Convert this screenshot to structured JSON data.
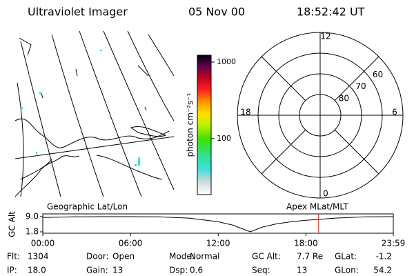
{
  "header": {
    "title": "Ultraviolet Imager",
    "date": "05 Nov 00",
    "time": "18:52:42 UT"
  },
  "colorbar": {
    "label": "photon cm⁻²s⁻¹",
    "scale": "log",
    "lim": [
      18.6,
      1230
    ],
    "ticks": [
      100,
      1000
    ]
  },
  "polar": {
    "rlim": [
      90,
      50
    ],
    "rings": [
      60,
      70,
      80
    ],
    "mlt_ticks": [
      0,
      6,
      12,
      18
    ]
  },
  "orbit": {
    "left_label": "Geographic Lat/Lon",
    "right_label": "Apex MLat/MLT",
    "ylabel": "GC Alt",
    "xlim": [
      0,
      23.98
    ],
    "ylim": [
      1.8,
      9.0
    ],
    "yticks": [
      {
        "value": 9.0,
        "label": "9.0"
      },
      {
        "value": 1.8,
        "label": "1.8"
      }
    ],
    "xticks": [
      {
        "value": 0,
        "label": "00:00"
      },
      {
        "value": 6,
        "label": "06:00"
      },
      {
        "value": 12,
        "label": "12:00"
      },
      {
        "value": 18,
        "label": "18:00"
      },
      {
        "value": 23.98,
        "label": "23:59"
      }
    ],
    "x": [
      0,
      2,
      4,
      6,
      8,
      10,
      12,
      13,
      14.2,
      15,
      16,
      17,
      18,
      18.87,
      20,
      22,
      23.98
    ],
    "values": [
      8.6,
      8.9,
      9.0,
      9.0,
      8.9,
      8.3,
      6.6,
      5.0,
      1.8,
      4.0,
      5.6,
      6.6,
      7.3,
      7.7,
      8.3,
      8.9,
      9.0
    ],
    "current_time": 18.87,
    "line_color": "#000000",
    "marker_color": "#cc2222"
  },
  "info": {
    "rows": [
      [
        {
          "label": "Flt:",
          "value": "1304"
        },
        {
          "label": "Door:",
          "value": "Open"
        },
        {
          "label": "Mode:",
          "value": "Normal"
        },
        {
          "label": "GC Alt:",
          "value": "7.7 Re"
        },
        {
          "label": "GLat:",
          "value": "-1.2"
        }
      ],
      [
        {
          "label": "IP:",
          "value": "18.0"
        },
        {
          "label": "Gain:",
          "value": "13"
        },
        {
          "label": "Dsp:",
          "value": "0.6"
        },
        {
          "label": "Seq:",
          "value": "13"
        },
        {
          "label": "GLon:",
          "value": "54.2"
        }
      ]
    ]
  }
}
